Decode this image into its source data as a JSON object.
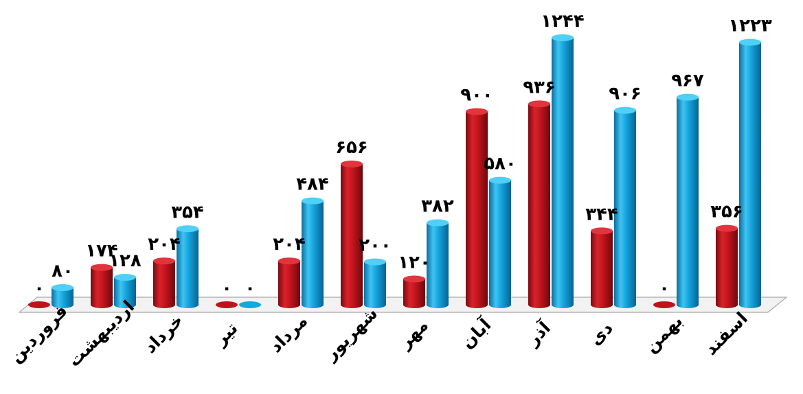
{
  "chart_data": {
    "type": "bar",
    "style": "3d-cylinder",
    "title": "",
    "xlabel": "",
    "ylabel": "",
    "grid": false,
    "legend": "none",
    "ylim": [
      0,
      1300
    ],
    "categories": [
      "فروردین",
      "اردیبهشت",
      "خرداد",
      "تیر",
      "مرداد",
      "شهریور",
      "مهر",
      "آبان",
      "آذر",
      "دی",
      "بهمن",
      "اسفند"
    ],
    "series": [
      {
        "color": "#c0121b",
        "values": [
          0,
          174,
          204,
          0,
          204,
          656,
          120,
          900,
          936,
          344,
          0,
          356
        ],
        "labels": [
          "۰",
          "۱۷۴",
          "۲۰۴",
          "۰",
          "۲۰۴",
          "۶۵۶",
          "۱۲۰",
          "۹۰۰",
          "۹۳۶",
          "۳۴۴",
          "۰",
          "۳۵۶"
        ]
      },
      {
        "color": "#12a8e0",
        "values": [
          80,
          128,
          354,
          0,
          484,
          200,
          382,
          580,
          1244,
          906,
          967,
          1223
        ],
        "labels": [
          "۸۰",
          "۱۲۸",
          "۳۵۴",
          "۰",
          "۴۸۴",
          "۲۰۰",
          "۳۸۲",
          "۵۸۰",
          "۱۲۴۴",
          "۹۰۶",
          "۹۶۷",
          "۱۲۲۳"
        ]
      }
    ]
  }
}
